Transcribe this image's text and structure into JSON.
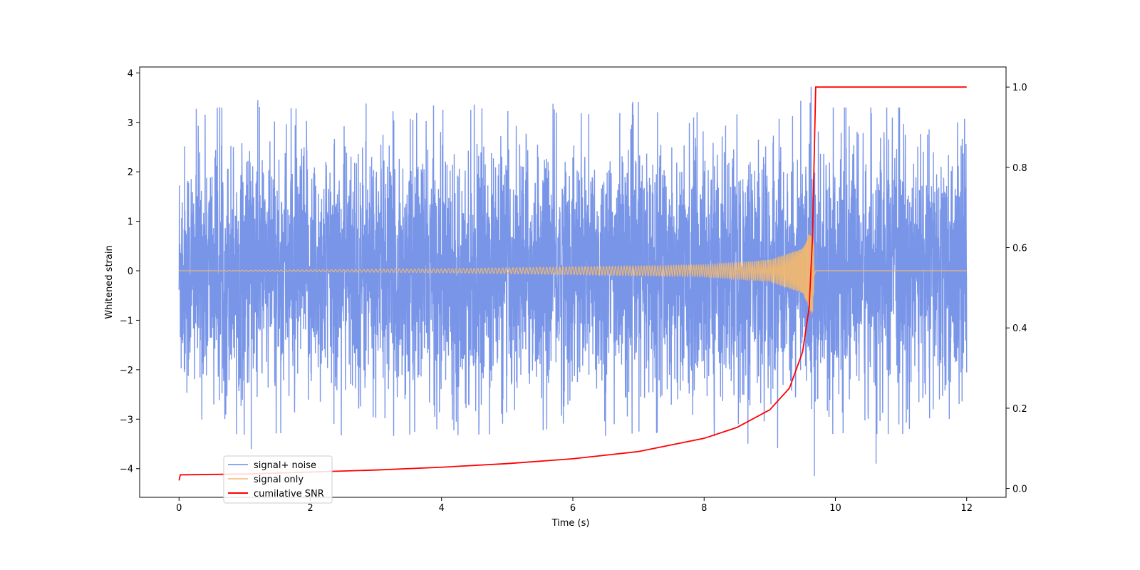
{
  "chart_data": {
    "type": "line",
    "title": "",
    "xlabel": "Time (s)",
    "ylabel": "Whitened strain",
    "y2label": "",
    "xlim": [
      -0.6,
      12.6
    ],
    "ylim": [
      -4.58,
      4.12
    ],
    "y2lim": [
      -0.022,
      1.05
    ],
    "xticks": [
      0,
      2,
      4,
      6,
      8,
      10,
      12
    ],
    "yticks": [
      -4,
      -3,
      -2,
      -1,
      0,
      1,
      2,
      3,
      4
    ],
    "y2ticks": [
      0.0,
      0.2,
      0.4,
      0.6,
      0.8,
      1.0
    ],
    "xtick_labels": [
      "0",
      "2",
      "4",
      "6",
      "8",
      "10",
      "12"
    ],
    "ytick_labels": [
      "−4",
      "−3",
      "−2",
      "−1",
      "0",
      "1",
      "2",
      "3",
      "4"
    ],
    "y2tick_labels": [
      "0.0",
      "0.2",
      "0.4",
      "0.6",
      "0.8",
      "1.0"
    ],
    "grid": false,
    "legend_position": "bottom-left",
    "series": [
      {
        "name": "signal+ noise",
        "axis": "left",
        "color": "#6a8ae6",
        "style": "dense noisy trace, roughly within ±2 with spikes to about ±3.5; dips to about −4.2 near t≈9.68",
        "t_range": [
          0,
          12
        ],
        "typical_amplitude": 2.0,
        "peak_values": [
          {
            "x": 1.1,
            "y": -3.6
          },
          {
            "x": 1.2,
            "y": 3.45
          },
          {
            "x": 2.85,
            "y": 3.38
          },
          {
            "x": 9.63,
            "y": 3.72
          },
          {
            "x": 9.68,
            "y": -4.15
          },
          {
            "x": 10.62,
            "y": -3.9
          }
        ]
      },
      {
        "name": "signal only",
        "axis": "left",
        "color": "#f5b96b",
        "style": "chirp with amplitude growing from ~0.02 to ~0.9 near merger at t≈9.68, then zero",
        "t_range": [
          0,
          12
        ],
        "merger_time": 9.68,
        "points": [
          {
            "x": 0,
            "y": 0.0
          },
          {
            "x": 4,
            "y": 0.04
          },
          {
            "x": 8,
            "y": 0.12
          },
          {
            "x": 9,
            "y": 0.22
          },
          {
            "x": 9.5,
            "y": 0.45
          },
          {
            "x": 9.65,
            "y": 0.9
          },
          {
            "x": 9.7,
            "y": 0.0
          },
          {
            "x": 12,
            "y": 0.0
          }
        ]
      },
      {
        "name": "cumilative SNR",
        "axis": "right",
        "color": "#ff0000",
        "points": [
          {
            "x": 0.0,
            "y": 0.02
          },
          {
            "x": 0.02,
            "y": 0.034
          },
          {
            "x": 1.0,
            "y": 0.036
          },
          {
            "x": 2.0,
            "y": 0.041
          },
          {
            "x": 3.0,
            "y": 0.046
          },
          {
            "x": 4.0,
            "y": 0.053
          },
          {
            "x": 5.0,
            "y": 0.062
          },
          {
            "x": 6.0,
            "y": 0.074
          },
          {
            "x": 7.0,
            "y": 0.092
          },
          {
            "x": 8.0,
            "y": 0.125
          },
          {
            "x": 8.5,
            "y": 0.152
          },
          {
            "x": 9.0,
            "y": 0.196
          },
          {
            "x": 9.3,
            "y": 0.25
          },
          {
            "x": 9.5,
            "y": 0.34
          },
          {
            "x": 9.6,
            "y": 0.45
          },
          {
            "x": 9.65,
            "y": 0.62
          },
          {
            "x": 9.7,
            "y": 1.0
          },
          {
            "x": 12.0,
            "y": 1.0
          }
        ]
      }
    ]
  }
}
